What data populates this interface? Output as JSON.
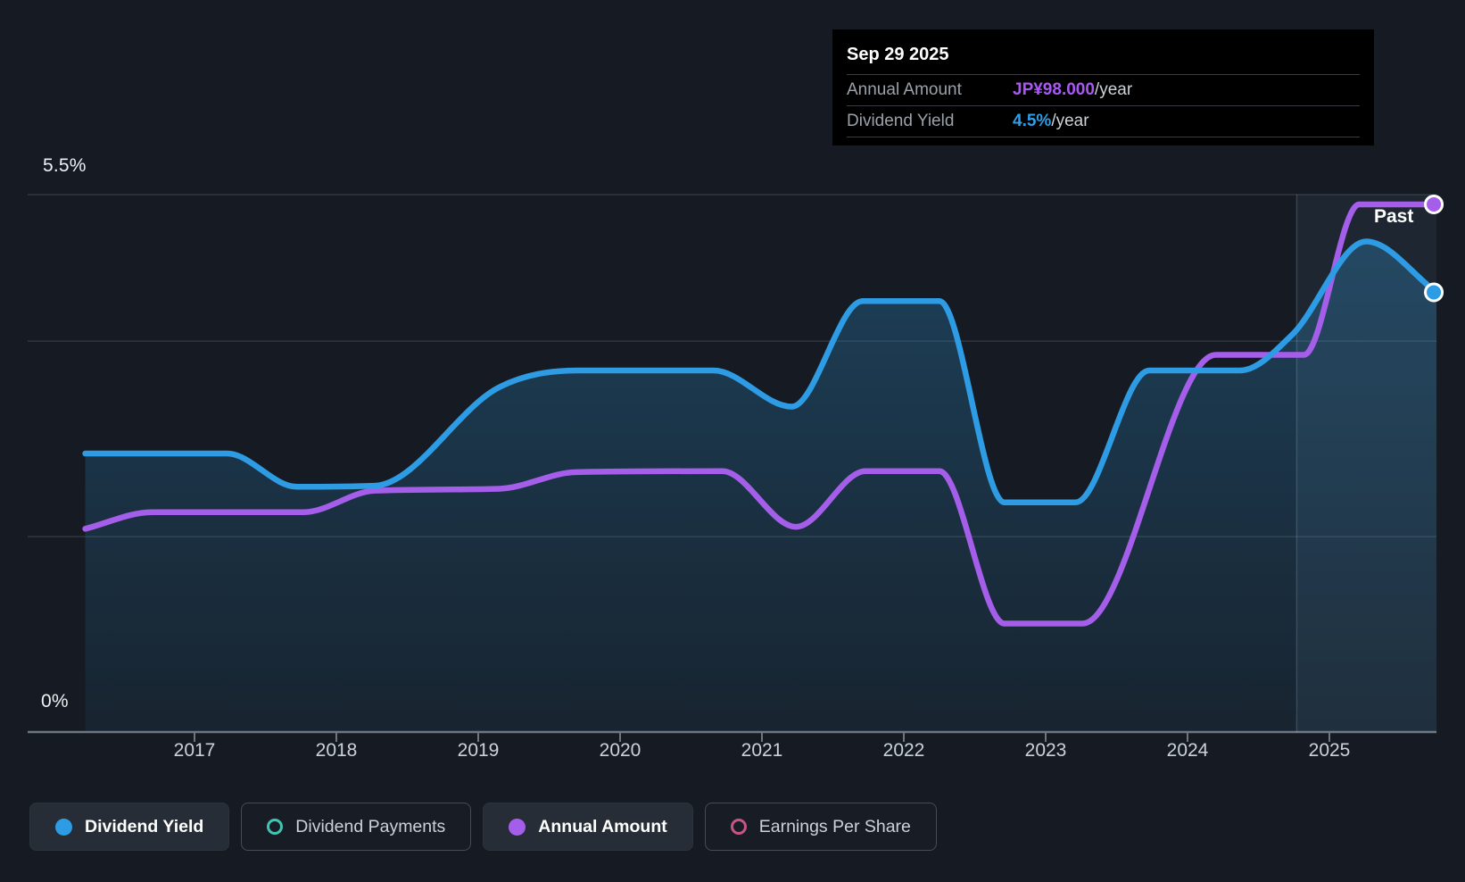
{
  "colors": {
    "background": "#161b23",
    "blue": "#2e9ce4",
    "purple": "#a55eea",
    "teal": "#41c4b2",
    "pink": "#c75489",
    "axis": "#6e7680",
    "grid": "rgba(255,255,255,0.12)",
    "tooltip_value_purple": "#a958f2",
    "tooltip_value_blue": "#2d9fe8"
  },
  "axes": {
    "y_max_label": "5.5%",
    "y_min_label": "0%",
    "x_labels": [
      "2017",
      "2018",
      "2019",
      "2020",
      "2021",
      "2022",
      "2023",
      "2024",
      "2025"
    ],
    "y_gridlines_pct": [
      5.5,
      4,
      2,
      0
    ]
  },
  "chart": {
    "past_label": "Past"
  },
  "tooltip": {
    "date": "Sep 29 2025",
    "rows": [
      {
        "label": "Annual Amount",
        "value": "JP¥98.000",
        "suffix": "/year",
        "color": "#a958f2"
      },
      {
        "label": "Dividend Yield",
        "value": "4.5%",
        "suffix": "/year",
        "color": "#2d9fe8"
      }
    ]
  },
  "legend": [
    {
      "label": "Dividend Yield",
      "icon": "dot",
      "color": "#2e9ce4",
      "active": true
    },
    {
      "label": "Dividend Payments",
      "icon": "ring",
      "color": "#41c4b2",
      "active": false
    },
    {
      "label": "Annual Amount",
      "icon": "dot",
      "color": "#a55eea",
      "active": true
    },
    {
      "label": "Earnings Per Share",
      "icon": "ring",
      "color": "#c75489",
      "active": false
    }
  ],
  "chart_data": {
    "type": "line",
    "title": "Dividend history",
    "x_range": [
      2016.23,
      2025.76
    ],
    "x_tick_labels": [
      "2017",
      "2018",
      "2019",
      "2020",
      "2021",
      "2022",
      "2023",
      "2024",
      "2025"
    ],
    "y_axis": {
      "min": 0,
      "max": 5.5,
      "unit": "%",
      "labeled_ticks": [
        "0%",
        "5.5%"
      ],
      "gridlines_pct": [
        0,
        2,
        4,
        5.5
      ]
    },
    "past_divider_x": 2024.77,
    "tooltip_readout": {
      "date": "Sep 29 2025",
      "annual_amount": "JP¥98.000/year",
      "dividend_yield": "4.5%/year"
    },
    "series": [
      {
        "name": "Dividend Yield",
        "color": "#2e9ce4",
        "style": "area",
        "unit": "%",
        "end_marker": true,
        "points": [
          [
            2016.23,
            2.85
          ],
          [
            2017.23,
            2.85
          ],
          [
            2017.72,
            2.51
          ],
          [
            2018.27,
            2.52
          ],
          [
            2019.15,
            3.53
          ],
          [
            2019.7,
            3.7
          ],
          [
            2020.66,
            3.7
          ],
          [
            2021.21,
            3.33
          ],
          [
            2021.71,
            4.41
          ],
          [
            2022.25,
            4.41
          ],
          [
            2022.71,
            2.35
          ],
          [
            2023.21,
            2.35
          ],
          [
            2023.73,
            3.7
          ],
          [
            2024.37,
            3.7
          ],
          [
            2024.74,
            4.07
          ],
          [
            2025.26,
            5.02
          ],
          [
            2025.755,
            4.5
          ]
        ]
      },
      {
        "name": "Annual Amount",
        "color": "#a55eea",
        "style": "line",
        "unit": "plotted on unlabeled scale; value at Sep 29 2025 = JP¥98.000/year",
        "end_marker": true,
        "points": [
          [
            2016.23,
            2.08
          ],
          [
            2016.7,
            2.25
          ],
          [
            2017.77,
            2.25
          ],
          [
            2018.27,
            2.47
          ],
          [
            2019.15,
            2.49
          ],
          [
            2019.69,
            2.66
          ],
          [
            2020.72,
            2.67
          ],
          [
            2021.24,
            2.1
          ],
          [
            2021.73,
            2.67
          ],
          [
            2022.25,
            2.67
          ],
          [
            2022.71,
            1.11
          ],
          [
            2023.26,
            1.11
          ],
          [
            2024.2,
            3.86
          ],
          [
            2024.82,
            3.86
          ],
          [
            2025.21,
            5.4
          ],
          [
            2025.755,
            5.4
          ]
        ]
      },
      {
        "name": "Dividend Payments",
        "color": "#41c4b2",
        "style": "hidden",
        "points": []
      },
      {
        "name": "Earnings Per Share",
        "color": "#c75489",
        "style": "hidden",
        "points": []
      }
    ]
  }
}
